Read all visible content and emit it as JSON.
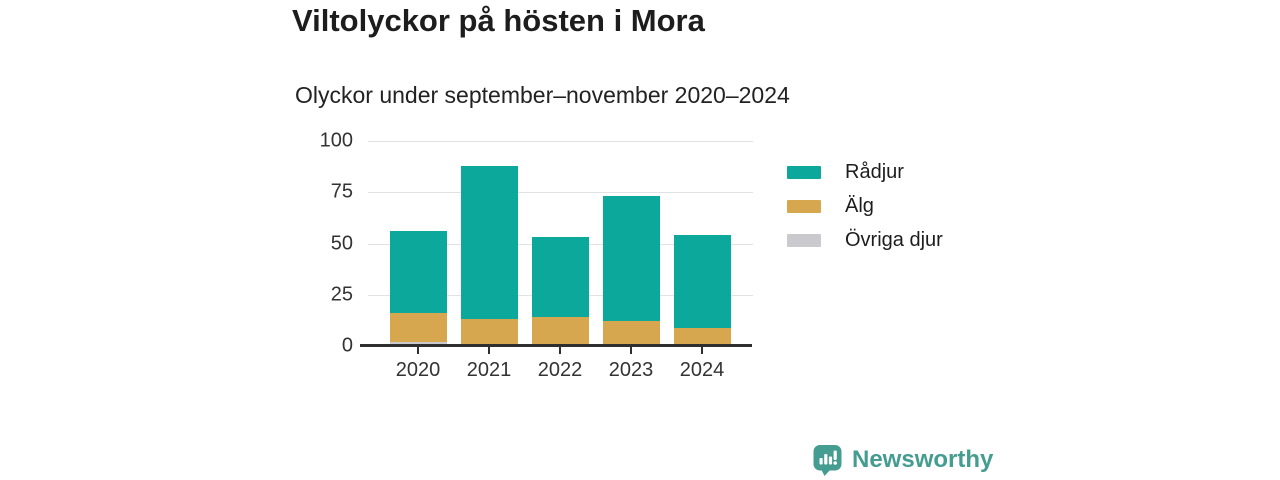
{
  "chart_data": {
    "type": "bar",
    "stacked": true,
    "title": "Viltolyckor på hösten i Mora",
    "subtitle": "Olyckor under september–november 2020–2024",
    "categories": [
      "2020",
      "2021",
      "2022",
      "2023",
      "2024"
    ],
    "series": [
      {
        "name": "Rådjur",
        "color": "#0BA89B",
        "values": [
          40,
          75,
          39,
          61,
          45
        ]
      },
      {
        "name": "Älg",
        "color": "#D7A74F",
        "values": [
          14,
          12,
          14,
          12,
          9
        ]
      },
      {
        "name": "Övriga djur",
        "color": "#CACACE",
        "values": [
          2,
          1,
          0,
          0,
          0
        ]
      }
    ],
    "totals": [
      56,
      88,
      53,
      73,
      54
    ],
    "yticks": [
      0,
      25,
      50,
      75,
      100
    ],
    "ylim": [
      0,
      100
    ],
    "grid": true,
    "legend_position": "right",
    "colors": {
      "axis_line": "#2f2f2f",
      "gridline": "#e2e2e2",
      "tick_text": "#333333"
    }
  },
  "footer": {
    "logo_text": "Newsworthy",
    "logo_color": "#459C90"
  }
}
